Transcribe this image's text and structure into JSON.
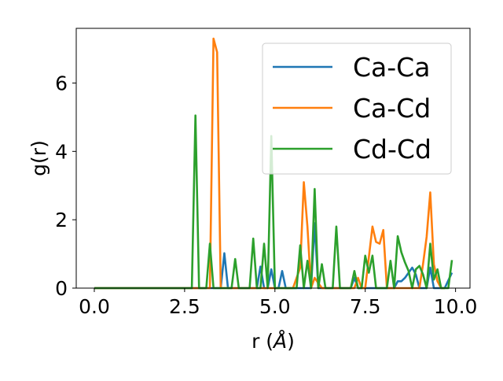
{
  "chart_data": {
    "type": "line",
    "xlabel": "r (",
    "xlabel_unit": "Å",
    "xlabel_close": ")",
    "ylabel": "g(r)",
    "xlim": [
      -0.5,
      10.4
    ],
    "ylim": [
      0,
      7.6
    ],
    "x_ticks": [
      0.0,
      2.5,
      5.0,
      7.5,
      10.0
    ],
    "x_tick_labels": [
      "0.0",
      "2.5",
      "5.0",
      "7.5",
      "10.0"
    ],
    "y_ticks": [
      0,
      2,
      4,
      6
    ],
    "y_tick_labels": [
      "0",
      "2",
      "4",
      "6"
    ],
    "grid": false,
    "legend_position": "upper right",
    "series": [
      {
        "name": "Ca-Ca",
        "color": "#1f77b4",
        "x": [
          0.0,
          3.1,
          3.3,
          3.5,
          3.6,
          3.7,
          3.9,
          4.1,
          4.3,
          4.5,
          4.6,
          4.7,
          4.8,
          4.9,
          5.0,
          5.1,
          5.2,
          5.3,
          5.5,
          5.7,
          5.9,
          6.0,
          6.1,
          6.2,
          6.3,
          6.5,
          6.7,
          6.9,
          7.1,
          7.2,
          7.3,
          7.5,
          7.7,
          7.9,
          8.1,
          8.3,
          8.4,
          8.5,
          8.6,
          8.7,
          8.8,
          8.9,
          9.0,
          9.1,
          9.2,
          9.3,
          9.4,
          9.5,
          9.6,
          9.7,
          9.9
        ],
        "y": [
          0,
          0,
          0,
          0,
          1.02,
          0,
          0,
          0,
          0,
          0,
          0.63,
          0,
          0,
          0.55,
          0,
          0,
          0.5,
          0,
          0,
          0,
          0,
          0,
          1.9,
          0,
          0,
          0,
          0,
          0,
          0,
          0.3,
          0,
          0,
          0,
          0,
          0,
          0,
          0.2,
          0.2,
          0.3,
          0.45,
          0.6,
          0.4,
          0,
          0,
          0,
          0.6,
          0,
          0,
          0,
          0,
          0.45
        ]
      },
      {
        "name": "Ca-Cd",
        "color": "#ff7f0e",
        "x": [
          0.0,
          3.1,
          3.2,
          3.3,
          3.4,
          3.5,
          3.7,
          5.5,
          5.7,
          5.8,
          5.9,
          6.0,
          6.1,
          6.3,
          6.5,
          7.2,
          7.3,
          7.4,
          7.5,
          7.6,
          7.7,
          7.8,
          7.9,
          8.0,
          8.1,
          8.2,
          8.4,
          8.6,
          8.8,
          9.0,
          9.1,
          9.2,
          9.3,
          9.4,
          9.5,
          9.6,
          9.7
        ],
        "y": [
          0,
          0,
          0,
          7.3,
          6.9,
          0,
          0,
          0,
          0.6,
          3.1,
          1.8,
          0,
          0.3,
          0,
          0,
          0,
          0.3,
          0,
          0,
          0.9,
          1.8,
          1.35,
          1.3,
          1.7,
          0,
          0,
          0,
          0,
          0,
          0,
          0.7,
          1.5,
          2.8,
          0.7,
          0.2,
          0,
          0
        ]
      },
      {
        "name": "Cd-Cd",
        "color": "#2ca02c",
        "x": [
          0.0,
          2.7,
          2.8,
          2.9,
          3.0,
          3.1,
          3.2,
          3.3,
          3.5,
          3.6,
          3.7,
          3.8,
          3.9,
          4.0,
          4.2,
          4.3,
          4.4,
          4.5,
          4.6,
          4.7,
          4.8,
          4.9,
          5.0,
          5.1,
          5.3,
          5.5,
          5.6,
          5.7,
          5.8,
          5.9,
          6.0,
          6.1,
          6.2,
          6.3,
          6.4,
          6.5,
          6.6,
          6.7,
          6.8,
          7.0,
          7.1,
          7.2,
          7.3,
          7.4,
          7.5,
          7.6,
          7.7,
          7.8,
          7.9,
          8.0,
          8.1,
          8.2,
          8.3,
          8.4,
          8.5,
          8.6,
          8.7,
          8.8,
          8.9,
          9.0,
          9.1,
          9.2,
          9.3,
          9.4,
          9.5,
          9.6,
          9.7,
          9.8,
          9.9
        ],
        "y": [
          0,
          0,
          5.05,
          0,
          0,
          0,
          1.3,
          0,
          0,
          0,
          0,
          0,
          0.85,
          0,
          0,
          0,
          1.45,
          0,
          0,
          1.3,
          0,
          4.45,
          0,
          0,
          0,
          0,
          0,
          1.25,
          0,
          0.8,
          0,
          2.9,
          0,
          0.7,
          0,
          0,
          0,
          1.8,
          0,
          0,
          0,
          0.5,
          0,
          0,
          0.95,
          0.45,
          0.95,
          0,
          0,
          0,
          0,
          0.8,
          0,
          1.52,
          1.05,
          0.75,
          0.5,
          0,
          0.55,
          0.65,
          0.4,
          0,
          1.3,
          0.25,
          0.55,
          0,
          0,
          0,
          0.82
        ]
      }
    ]
  }
}
